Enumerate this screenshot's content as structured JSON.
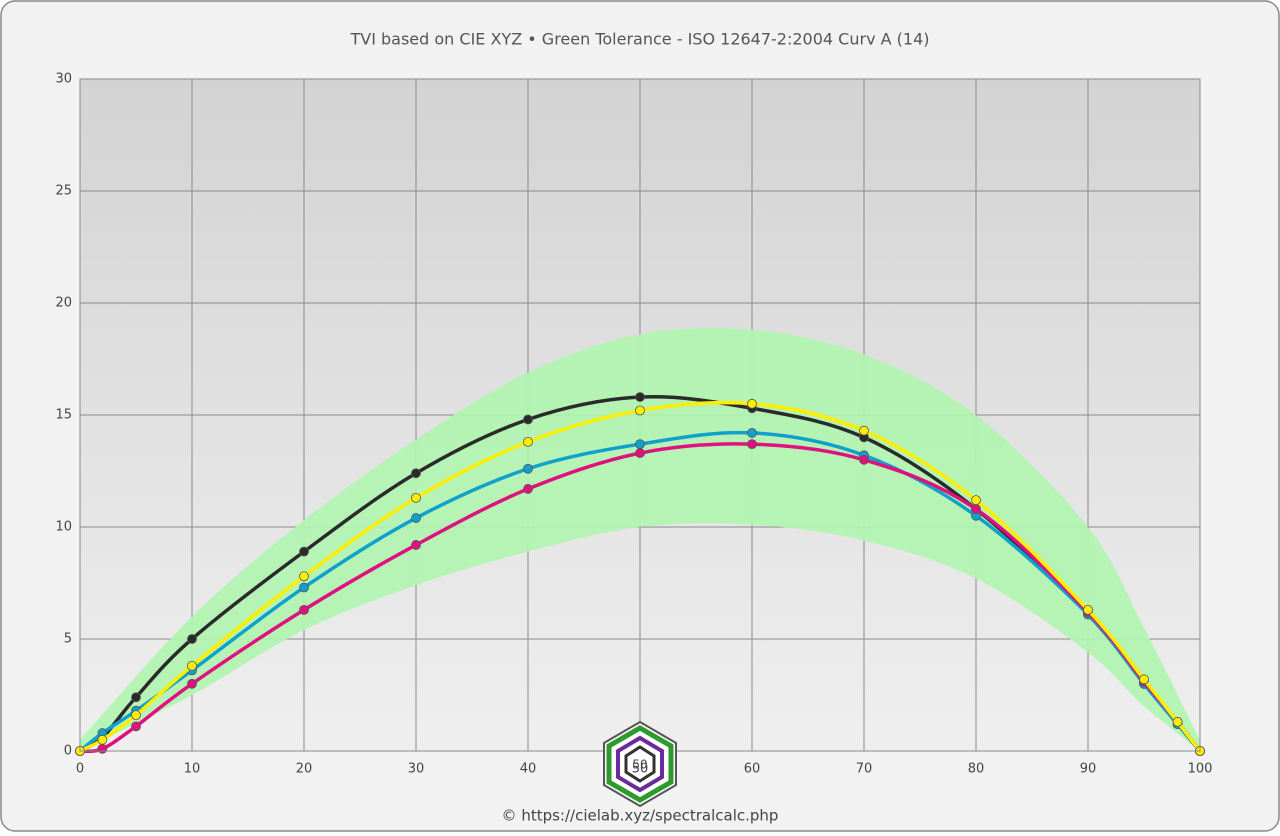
{
  "chart_data": {
    "type": "line",
    "title": "TVI based on CIE XYZ  •  Green Tolerance - ISO 12647-2:2004 Curv A (14)",
    "x": [
      0,
      2,
      5,
      10,
      20,
      30,
      40,
      50,
      60,
      70,
      80,
      90,
      95,
      98,
      100
    ],
    "series": [
      {
        "color": "#2a2a2a",
        "values": [
          0,
          0.6,
          2.4,
          5.0,
          8.9,
          12.4,
          14.8,
          15.8,
          15.3,
          14.0,
          10.8,
          6.1,
          3.0,
          1.2,
          0
        ]
      },
      {
        "color": "#11a0cc",
        "values": [
          0,
          0.8,
          1.8,
          3.6,
          7.3,
          10.4,
          12.6,
          13.7,
          14.2,
          13.2,
          10.5,
          6.1,
          3.0,
          1.2,
          0
        ]
      },
      {
        "color": "#e0117f",
        "values": [
          0,
          0.1,
          1.1,
          3.0,
          6.3,
          9.2,
          11.7,
          13.3,
          13.7,
          13.0,
          10.8,
          6.2,
          3.1,
          1.3,
          0
        ]
      },
      {
        "color": "#ffee00",
        "values": [
          0,
          0.5,
          1.6,
          3.8,
          7.8,
          11.3,
          13.8,
          15.2,
          15.5,
          14.3,
          11.2,
          6.3,
          3.2,
          1.3,
          0
        ]
      }
    ],
    "band": {
      "color": "#b0f5b0",
      "x": [
        0,
        10,
        20,
        30,
        40,
        50,
        60,
        70,
        80,
        90,
        95,
        100
      ],
      "upper": [
        0.5,
        6.0,
        10.3,
        13.9,
        16.9,
        18.6,
        18.8,
        17.7,
        15.0,
        10.0,
        5.5,
        0.5
      ],
      "lower": [
        0,
        2.5,
        5.4,
        7.4,
        8.9,
        10.0,
        10.1,
        9.4,
        7.7,
        4.4,
        2.0,
        0
      ]
    },
    "xlim": [
      0,
      100
    ],
    "xticks": [
      0,
      10,
      20,
      30,
      40,
      50,
      60,
      70,
      80,
      90,
      100
    ],
    "ylim": [
      0,
      30
    ],
    "yticks": [
      0,
      5,
      10,
      15,
      20,
      25,
      30
    ],
    "grid": true,
    "logo_text": "50",
    "footer": "© https://cielab.xyz/spectralcalc.php"
  }
}
